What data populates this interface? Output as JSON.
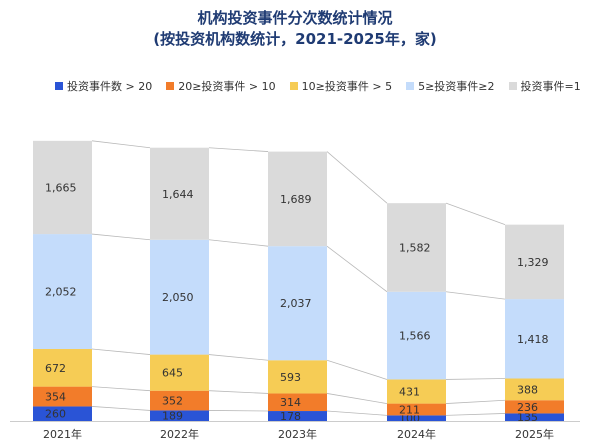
{
  "title_line1": "机构投资事件分次数统计情况",
  "title_line2": "(按投资机构数统计，2021-2025年，家)",
  "chart_data": {
    "type": "bar",
    "stacked": true,
    "categories": [
      "2021年",
      "2022年",
      "2023年",
      "2024年",
      "2025年"
    ],
    "series": [
      {
        "name": "投资事件数 > 20",
        "color": "#2a54d6",
        "values": [
          260,
          189,
          178,
          100,
          135
        ]
      },
      {
        "name": "20≥投资事件 > 10",
        "color": "#f27c2a",
        "values": [
          354,
          352,
          314,
          211,
          236
        ]
      },
      {
        "name": "10≥投资事件 > 5",
        "color": "#f6cc55",
        "values": [
          672,
          645,
          593,
          431,
          388
        ]
      },
      {
        "name": "5≥投资事件≥2",
        "color": "#c4dcfb",
        "values": [
          2052,
          2050,
          2037,
          1566,
          1418
        ]
      },
      {
        "name": "投资事件=1",
        "color": "#dadada",
        "values": [
          1665,
          1644,
          1689,
          1582,
          1329
        ]
      }
    ],
    "data_labels": [
      [
        "260",
        "189",
        "178",
        "100",
        "135"
      ],
      [
        "354",
        "352",
        "314",
        "211",
        "236"
      ],
      [
        "672",
        "645",
        "593",
        "431",
        "388"
      ],
      [
        "2,052",
        "2,050",
        "2,037",
        "1,566",
        "1,418"
      ],
      [
        "1,665",
        "1,644",
        "1,689",
        "1,582",
        "1,329"
      ]
    ],
    "legend_position": "top",
    "grid": false,
    "connector_lines": true
  }
}
